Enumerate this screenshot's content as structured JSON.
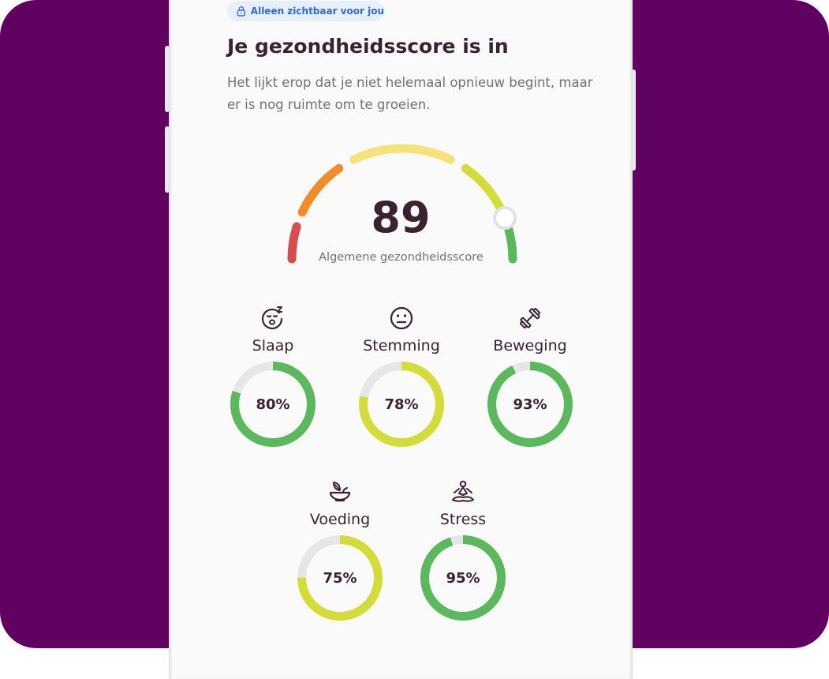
{
  "privacy_badge": {
    "label": "Alleen zichtbaar voor jou",
    "icon": "lock-icon"
  },
  "header": {
    "title": "Je gezondheidsscore is in",
    "subtitle": "Het lijkt erop dat je niet helemaal opnieuw begint, maar er is nog ruimte om te groeien."
  },
  "overall": {
    "score": "89",
    "label": "Algemene gezondheidsscore",
    "value": 89,
    "max": 100,
    "segment_colors": [
      "#d94c4c",
      "#f28c2a",
      "#f5e27a",
      "#d4dc3a",
      "#5cb85c"
    ]
  },
  "metrics": [
    {
      "name": "Slaap",
      "percent_label": "80%",
      "value": 80,
      "icon": "sleeping-face-icon",
      "color": "#5cb85c"
    },
    {
      "name": "Stemming",
      "percent_label": "78%",
      "value": 78,
      "icon": "neutral-face-icon",
      "color": "#d4dc3a"
    },
    {
      "name": "Beweging",
      "percent_label": "93%",
      "value": 93,
      "icon": "dumbbell-icon",
      "color": "#5cb85c"
    },
    {
      "name": "Voeding",
      "percent_label": "75%",
      "value": 75,
      "icon": "food-bowl-icon",
      "color": "#d4dc3a"
    },
    {
      "name": "Stress",
      "percent_label": "95%",
      "value": 95,
      "icon": "meditation-icon",
      "color": "#5cb85c"
    }
  ],
  "colors": {
    "background": "#600060",
    "card": "#fafafa",
    "text": "#3b2233",
    "muted": "#707076",
    "track": "#e6e6e6",
    "badge_bg": "#e7effb",
    "badge_text": "#2e6bd6"
  }
}
